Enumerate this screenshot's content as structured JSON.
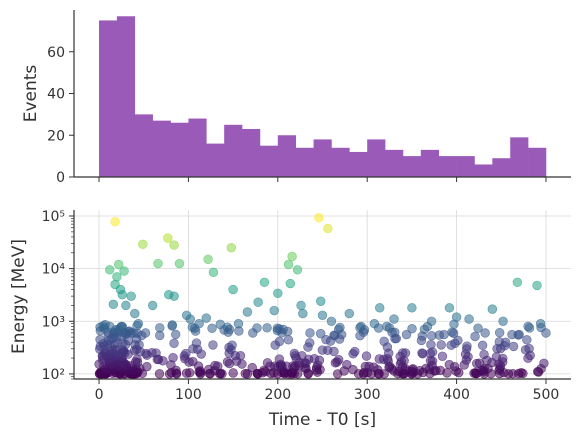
{
  "chart_data": [
    {
      "type": "bar",
      "ylabel": "Events",
      "ylim": [
        0,
        80
      ],
      "xlim": [
        -28,
        528
      ],
      "grid": false,
      "bar_color": "#9a5ab8",
      "yticks": [
        0,
        20,
        40,
        60
      ],
      "bins": [
        {
          "x0": 0,
          "x1": 20,
          "count": 75
        },
        {
          "x0": 20,
          "x1": 40,
          "count": 77
        },
        {
          "x0": 40,
          "x1": 60,
          "count": 30
        },
        {
          "x0": 60,
          "x1": 80,
          "count": 27
        },
        {
          "x0": 80,
          "x1": 100,
          "count": 26
        },
        {
          "x0": 100,
          "x1": 120,
          "count": 28
        },
        {
          "x0": 120,
          "x1": 140,
          "count": 16
        },
        {
          "x0": 140,
          "x1": 160,
          "count": 25
        },
        {
          "x0": 160,
          "x1": 180,
          "count": 23
        },
        {
          "x0": 180,
          "x1": 200,
          "count": 15
        },
        {
          "x0": 200,
          "x1": 220,
          "count": 20
        },
        {
          "x0": 220,
          "x1": 240,
          "count": 14
        },
        {
          "x0": 240,
          "x1": 260,
          "count": 18
        },
        {
          "x0": 260,
          "x1": 280,
          "count": 14
        },
        {
          "x0": 280,
          "x1": 300,
          "count": 12
        },
        {
          "x0": 300,
          "x1": 320,
          "count": 18
        },
        {
          "x0": 320,
          "x1": 340,
          "count": 13
        },
        {
          "x0": 340,
          "x1": 360,
          "count": 10
        },
        {
          "x0": 360,
          "x1": 380,
          "count": 13
        },
        {
          "x0": 380,
          "x1": 400,
          "count": 10
        },
        {
          "x0": 400,
          "x1": 420,
          "count": 10
        },
        {
          "x0": 420,
          "x1": 440,
          "count": 6
        },
        {
          "x0": 440,
          "x1": 460,
          "count": 9
        },
        {
          "x0": 460,
          "x1": 480,
          "count": 19
        },
        {
          "x0": 480,
          "x1": 500,
          "count": 14
        }
      ]
    },
    {
      "type": "scatter",
      "xlabel": "Time - T0 [s]",
      "ylabel": "Energy [MeV]",
      "xlim": [
        -28,
        528
      ],
      "ylim": [
        80,
        130000
      ],
      "yscale": "log",
      "grid": true,
      "xticks": [
        0,
        100,
        200,
        300,
        400,
        500
      ],
      "yticks": [
        {
          "value": 100,
          "label": "10²"
        },
        {
          "value": 1000,
          "label": "10³"
        },
        {
          "value": 10000,
          "label": "10⁴"
        },
        {
          "value": 100000,
          "label": "10⁵"
        }
      ],
      "colormap": "viridis",
      "color_by": "log10 energy",
      "generated_points": {
        "description_only": "",
        "count": 520,
        "t_min": 0,
        "t_max": 500,
        "e_min": 100,
        "e_max": 80000
      },
      "points": [
        [
          18,
          78000
        ],
        [
          246,
          93000
        ],
        [
          256,
          58000
        ],
        [
          77,
          38000
        ],
        [
          84,
          28000
        ],
        [
          49,
          29000
        ],
        [
          148,
          25000
        ],
        [
          216,
          17000
        ],
        [
          122,
          15000
        ],
        [
          22,
          12000
        ],
        [
          12,
          9500
        ],
        [
          66,
          12500
        ],
        [
          90,
          12500
        ],
        [
          212,
          12000
        ],
        [
          128,
          8500
        ],
        [
          28,
          9000
        ],
        [
          20,
          7000
        ],
        [
          222,
          9500
        ],
        [
          468,
          5500
        ],
        [
          490,
          4800
        ],
        [
          185,
          5500
        ],
        [
          214,
          5200
        ],
        [
          18,
          5000
        ],
        [
          24,
          4000
        ],
        [
          26,
          3200
        ],
        [
          36,
          3000
        ],
        [
          150,
          4000
        ],
        [
          200,
          3400
        ],
        [
          78,
          3200
        ],
        [
          84,
          3000
        ],
        [
          16,
          2100
        ],
        [
          30,
          2000
        ],
        [
          60,
          2000
        ],
        [
          178,
          2300
        ],
        [
          226,
          2000
        ],
        [
          314,
          1800
        ],
        [
          350,
          1800
        ],
        [
          392,
          1800
        ],
        [
          440,
          1700
        ],
        [
          40,
          1400
        ],
        [
          98,
          1300
        ],
        [
          102,
          1100
        ],
        [
          120,
          1150
        ],
        [
          166,
          1500
        ],
        [
          248,
          2400
        ],
        [
          250,
          1300
        ],
        [
          196,
          1600
        ],
        [
          280,
          1400
        ],
        [
          330,
          1100
        ],
        [
          372,
          1000
        ],
        [
          400,
          1200
        ],
        [
          414,
          1100
        ],
        [
          452,
          1000
        ],
        [
          494,
          900
        ],
        [
          480,
          800
        ],
        [
          470,
          560
        ],
        [
          260,
          1000
        ],
        [
          308,
          900
        ],
        [
          228,
          1400
        ],
        [
          12,
          800
        ],
        [
          22,
          700
        ],
        [
          34,
          650
        ],
        [
          44,
          900
        ],
        [
          52,
          600
        ],
        [
          68,
          750
        ],
        [
          82,
          850
        ],
        [
          108,
          650
        ],
        [
          112,
          900
        ],
        [
          146,
          700
        ],
        [
          156,
          900
        ],
        [
          172,
          600
        ],
        [
          188,
          750
        ],
        [
          206,
          700
        ],
        [
          236,
          600
        ],
        [
          268,
          700
        ],
        [
          296,
          620
        ],
        [
          322,
          800
        ],
        [
          344,
          560
        ],
        [
          364,
          700
        ],
        [
          386,
          560
        ],
        [
          424,
          740
        ],
        [
          432,
          600
        ],
        [
          462,
          560
        ],
        [
          500,
          600
        ]
      ]
    }
  ]
}
